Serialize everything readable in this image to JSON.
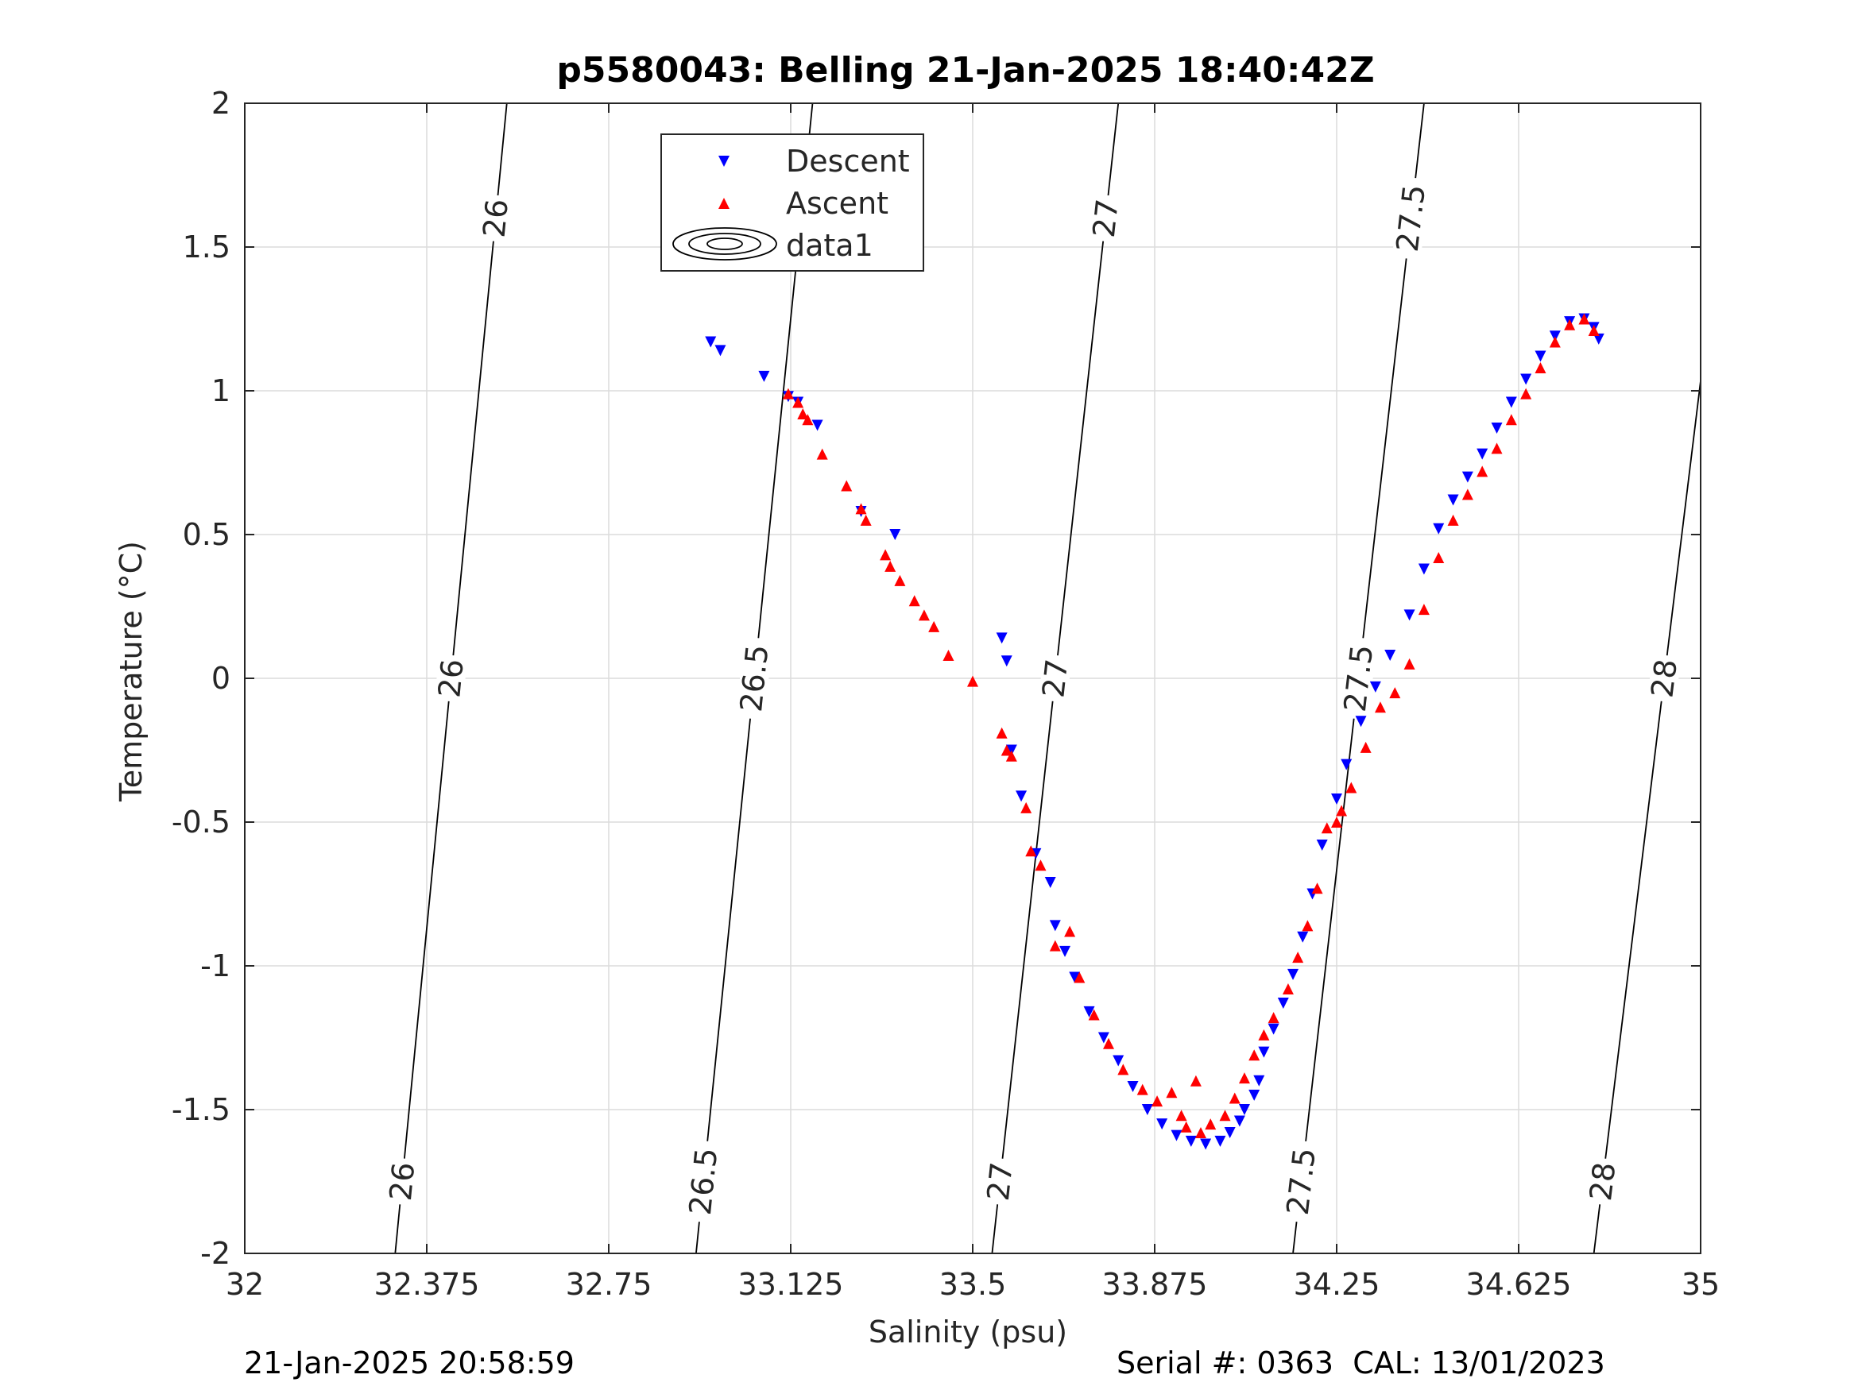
{
  "chart_data": {
    "type": "scatter",
    "title": "p5580043: Belling 21-Jan-2025 18:40:42Z",
    "xlabel": "Salinity (psu)",
    "ylabel": "Temperature (°C)",
    "xlim": [
      32,
      35
    ],
    "ylim": [
      -2,
      2
    ],
    "x_ticks": [
      32,
      32.375,
      32.75,
      33.125,
      33.5,
      33.875,
      34.25,
      34.625,
      35
    ],
    "x_tick_labels": [
      "32",
      "32.375",
      "32.75",
      "33.125",
      "33.5",
      "33.875",
      "34.25",
      "34.625",
      "35"
    ],
    "y_ticks": [
      -2,
      -1.5,
      -1,
      -0.5,
      0,
      0.5,
      1,
      1.5,
      2
    ],
    "y_tick_labels": [
      "-2",
      "-1.5",
      "-1",
      "-0.5",
      "0",
      "0.5",
      "1",
      "1.5",
      "2"
    ],
    "grid": true,
    "legend": {
      "placement": "top-center",
      "entries": [
        {
          "label": "Descent",
          "marker": "triangle-down",
          "color": "#0000ff"
        },
        {
          "label": "Ascent",
          "marker": "triangle-up",
          "color": "#ff0000"
        },
        {
          "label": "data1",
          "marker": "contour",
          "color": "#000000"
        }
      ]
    },
    "series": [
      {
        "name": "Descent",
        "marker": "triangle-down",
        "color": "#0000ff",
        "points": [
          [
            32.96,
            1.17
          ],
          [
            32.98,
            1.14
          ],
          [
            33.07,
            1.05
          ],
          [
            33.12,
            0.98
          ],
          [
            33.14,
            0.96
          ],
          [
            33.18,
            0.88
          ],
          [
            33.27,
            0.58
          ],
          [
            33.34,
            0.5
          ],
          [
            33.56,
            0.14
          ],
          [
            33.57,
            0.06
          ],
          [
            33.58,
            -0.25
          ],
          [
            33.6,
            -0.41
          ],
          [
            33.63,
            -0.61
          ],
          [
            33.66,
            -0.71
          ],
          [
            33.67,
            -0.86
          ],
          [
            33.69,
            -0.95
          ],
          [
            33.71,
            -1.04
          ],
          [
            33.74,
            -1.16
          ],
          [
            33.77,
            -1.25
          ],
          [
            33.8,
            -1.33
          ],
          [
            33.83,
            -1.42
          ],
          [
            33.86,
            -1.5
          ],
          [
            33.89,
            -1.55
          ],
          [
            33.92,
            -1.59
          ],
          [
            33.95,
            -1.61
          ],
          [
            33.98,
            -1.62
          ],
          [
            34.01,
            -1.61
          ],
          [
            34.03,
            -1.58
          ],
          [
            34.05,
            -1.54
          ],
          [
            34.06,
            -1.5
          ],
          [
            34.08,
            -1.45
          ],
          [
            34.09,
            -1.4
          ],
          [
            34.1,
            -1.3
          ],
          [
            34.12,
            -1.22
          ],
          [
            34.14,
            -1.13
          ],
          [
            34.16,
            -1.03
          ],
          [
            34.18,
            -0.9
          ],
          [
            34.2,
            -0.75
          ],
          [
            34.22,
            -0.58
          ],
          [
            34.25,
            -0.42
          ],
          [
            34.27,
            -0.3
          ],
          [
            34.3,
            -0.15
          ],
          [
            34.33,
            -0.03
          ],
          [
            34.36,
            0.08
          ],
          [
            34.4,
            0.22
          ],
          [
            34.43,
            0.38
          ],
          [
            34.46,
            0.52
          ],
          [
            34.49,
            0.62
          ],
          [
            34.52,
            0.7
          ],
          [
            34.55,
            0.78
          ],
          [
            34.58,
            0.87
          ],
          [
            34.61,
            0.96
          ],
          [
            34.64,
            1.04
          ],
          [
            34.67,
            1.12
          ],
          [
            34.7,
            1.19
          ],
          [
            34.73,
            1.24
          ],
          [
            34.76,
            1.25
          ],
          [
            34.78,
            1.22
          ],
          [
            34.79,
            1.18
          ]
        ]
      },
      {
        "name": "Ascent",
        "marker": "triangle-up",
        "color": "#ff0000",
        "points": [
          [
            33.12,
            0.99
          ],
          [
            33.14,
            0.96
          ],
          [
            33.15,
            0.92
          ],
          [
            33.16,
            0.9
          ],
          [
            33.19,
            0.78
          ],
          [
            33.24,
            0.67
          ],
          [
            33.27,
            0.59
          ],
          [
            33.28,
            0.55
          ],
          [
            33.32,
            0.43
          ],
          [
            33.33,
            0.39
          ],
          [
            33.35,
            0.34
          ],
          [
            33.38,
            0.27
          ],
          [
            33.4,
            0.22
          ],
          [
            33.42,
            0.18
          ],
          [
            33.45,
            0.08
          ],
          [
            33.5,
            -0.01
          ],
          [
            33.56,
            -0.19
          ],
          [
            33.57,
            -0.25
          ],
          [
            33.58,
            -0.27
          ],
          [
            33.61,
            -0.45
          ],
          [
            33.62,
            -0.6
          ],
          [
            33.64,
            -0.65
          ],
          [
            33.67,
            -0.93
          ],
          [
            33.7,
            -0.88
          ],
          [
            33.72,
            -1.04
          ],
          [
            33.75,
            -1.17
          ],
          [
            33.78,
            -1.27
          ],
          [
            33.81,
            -1.36
          ],
          [
            33.85,
            -1.43
          ],
          [
            33.88,
            -1.47
          ],
          [
            33.91,
            -1.44
          ],
          [
            33.93,
            -1.52
          ],
          [
            33.94,
            -1.56
          ],
          [
            33.96,
            -1.4
          ],
          [
            33.97,
            -1.58
          ],
          [
            33.99,
            -1.55
          ],
          [
            34.02,
            -1.52
          ],
          [
            34.04,
            -1.46
          ],
          [
            34.06,
            -1.39
          ],
          [
            34.08,
            -1.31
          ],
          [
            34.1,
            -1.24
          ],
          [
            34.12,
            -1.18
          ],
          [
            34.15,
            -1.08
          ],
          [
            34.17,
            -0.97
          ],
          [
            34.19,
            -0.86
          ],
          [
            34.21,
            -0.73
          ],
          [
            34.23,
            -0.52
          ],
          [
            34.25,
            -0.5
          ],
          [
            34.26,
            -0.46
          ],
          [
            34.28,
            -0.38
          ],
          [
            34.31,
            -0.24
          ],
          [
            34.34,
            -0.1
          ],
          [
            34.37,
            -0.05
          ],
          [
            34.4,
            0.05
          ],
          [
            34.43,
            0.24
          ],
          [
            34.46,
            0.42
          ],
          [
            34.49,
            0.55
          ],
          [
            34.52,
            0.64
          ],
          [
            34.55,
            0.72
          ],
          [
            34.58,
            0.8
          ],
          [
            34.61,
            0.9
          ],
          [
            34.64,
            0.99
          ],
          [
            34.67,
            1.08
          ],
          [
            34.7,
            1.17
          ],
          [
            34.73,
            1.23
          ],
          [
            34.76,
            1.25
          ],
          [
            34.78,
            1.21
          ]
        ]
      }
    ],
    "isopycnals": [
      {
        "label": "26",
        "salinity_top": 32.54,
        "salinity_bottom": 32.31
      },
      {
        "label": "26.5",
        "salinity_top": 33.17,
        "salinity_bottom": 32.93
      },
      {
        "label": "27",
        "salinity_top": 33.8,
        "salinity_bottom": 33.54
      },
      {
        "label": "27.5",
        "salinity_top": 34.43,
        "salinity_bottom": 34.16
      },
      {
        "label": "28",
        "salinity_top": 35.07,
        "salinity_bottom": 34.78
      }
    ]
  },
  "footer": {
    "timestamp": "21-Jan-2025 20:58:59",
    "serial_cal": "Serial #: 0363  CAL: 13/01/2023"
  }
}
